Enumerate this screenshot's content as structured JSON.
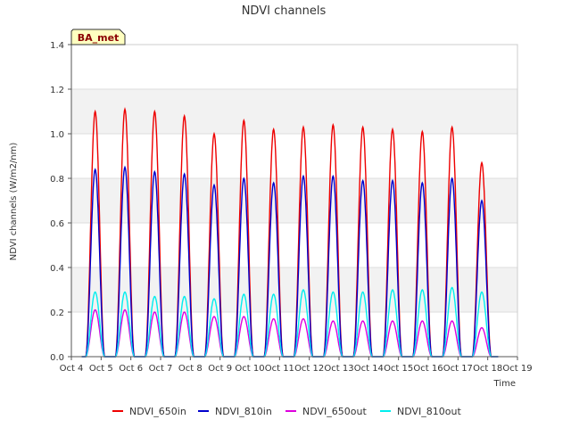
{
  "chart_data": {
    "type": "line",
    "title": "NDVI channels",
    "xlabel": "Time",
    "ylabel": "NDVI channels (W/m2/nm)",
    "station_label": "BA_met",
    "xlim": [
      4,
      19
    ],
    "ylim": [
      0,
      1.4
    ],
    "x_ticks": [
      4,
      5,
      6,
      7,
      8,
      9,
      10,
      11,
      12,
      13,
      14,
      15,
      16,
      17,
      18,
      19
    ],
    "x_tick_labels": [
      "Oct 4",
      "Oct 5",
      "Oct 6",
      "Oct 7",
      "Oct 8",
      "Oct 9",
      "Oct 10",
      "Oct 11",
      "Oct 12",
      "Oct 13",
      "Oct 14",
      "Oct 15",
      "Oct 16",
      "Oct 17",
      "Oct 18",
      "Oct 19"
    ],
    "y_ticks": [
      0.0,
      0.2,
      0.4,
      0.6,
      0.8,
      1.0,
      1.2,
      1.4
    ],
    "y_tick_labels": [
      "0.0",
      "0.2",
      "0.4",
      "0.6",
      "0.8",
      "1.0",
      "1.2",
      "1.4"
    ],
    "x_start": 4.35,
    "x_end": 18.35,
    "day_peak_centers": [
      4.8,
      5.8,
      6.8,
      7.8,
      8.8,
      9.8,
      10.8,
      11.8,
      12.8,
      13.8,
      14.8,
      15.8,
      16.8,
      17.8
    ],
    "day_half_width": 0.32,
    "series": [
      {
        "name": "NDVI_650in",
        "color": "#ee0000",
        "daily_peaks": [
          1.1,
          1.11,
          1.1,
          1.08,
          1.0,
          1.06,
          1.02,
          1.03,
          1.04,
          1.03,
          1.02,
          1.01,
          1.03,
          0.87
        ]
      },
      {
        "name": "NDVI_810in",
        "color": "#0000cc",
        "daily_peaks": [
          0.84,
          0.85,
          0.83,
          0.82,
          0.77,
          0.8,
          0.78,
          0.81,
          0.81,
          0.79,
          0.79,
          0.78,
          0.8,
          0.7
        ]
      },
      {
        "name": "NDVI_650out",
        "color": "#dd00dd",
        "daily_peaks": [
          0.21,
          0.21,
          0.2,
          0.2,
          0.18,
          0.18,
          0.17,
          0.17,
          0.16,
          0.16,
          0.16,
          0.16,
          0.16,
          0.13
        ]
      },
      {
        "name": "NDVI_810out",
        "color": "#00eeee",
        "daily_peaks": [
          0.29,
          0.29,
          0.27,
          0.27,
          0.26,
          0.28,
          0.28,
          0.3,
          0.29,
          0.29,
          0.3,
          0.3,
          0.31,
          0.29
        ]
      }
    ]
  }
}
